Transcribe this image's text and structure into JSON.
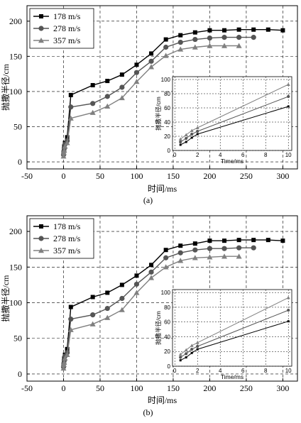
{
  "chart_data": [
    {
      "type": "line",
      "caption": "(a)",
      "xlabel": "时间/ms",
      "ylabel": "抛撒半径/cm",
      "xlim": [
        -50,
        320
      ],
      "ylim": [
        -10,
        222
      ],
      "xticks": [
        -50,
        0,
        50,
        100,
        150,
        200,
        250,
        300
      ],
      "yticks": [
        0,
        50,
        100,
        150,
        200
      ],
      "grid": true,
      "legend": "top-left",
      "series": [
        {
          "name": "178 m/s",
          "marker": "square",
          "color": "#000000",
          "x": [
            0,
            0.5,
            1,
            2,
            5,
            10,
            40,
            60,
            80,
            100,
            120,
            140,
            160,
            180,
            200,
            220,
            240,
            260,
            280,
            300
          ],
          "y": [
            12,
            18,
            22,
            27,
            35,
            95,
            109,
            115,
            124,
            138,
            154,
            174,
            180,
            184,
            187,
            187,
            188,
            188,
            188,
            187
          ]
        },
        {
          "name": "278 m/s",
          "marker": "circle",
          "color": "#555555",
          "x": [
            0,
            0.5,
            1,
            2,
            5,
            10,
            40,
            60,
            80,
            100,
            120,
            140,
            160,
            180,
            200,
            220,
            240,
            260
          ],
          "y": [
            10,
            15,
            19,
            25,
            30,
            78,
            83,
            93,
            106,
            127,
            143,
            163,
            170,
            174,
            176,
            177,
            177,
            177
          ]
        },
        {
          "name": "357 m/s",
          "marker": "triangle",
          "color": "#808080",
          "x": [
            0,
            0.5,
            1,
            2,
            5,
            10,
            40,
            60,
            80,
            100,
            120,
            140,
            160,
            180,
            200,
            220,
            240
          ],
          "y": [
            8,
            13,
            16,
            22,
            27,
            62,
            70,
            79,
            91,
            114,
            135,
            151,
            160,
            163,
            165,
            165,
            165
          ]
        }
      ],
      "inset": {
        "type": "line",
        "xlabel": "Time/ms",
        "ylabel": "抛撒半径/cm",
        "xlim": [
          -0.2,
          10.3
        ],
        "ylim": [
          0,
          104
        ],
        "xticks": [
          0,
          2,
          4,
          6,
          8,
          10
        ],
        "yticks": [
          0,
          20,
          40,
          60,
          80,
          100
        ],
        "series": [
          {
            "name": "178 m/s",
            "x": [
              0.5,
              1,
              1.5,
              2,
              10
            ],
            "y": [
              8,
              12,
              18,
              23,
              62
            ]
          },
          {
            "name": "278 m/s",
            "x": [
              0.5,
              1,
              1.5,
              2,
              10
            ],
            "y": [
              12,
              17,
              23,
              27,
              76
            ]
          },
          {
            "name": "357 m/s",
            "x": [
              0.5,
              1,
              1.5,
              2,
              10
            ],
            "y": [
              16,
              22,
              28,
              32,
              93
            ]
          }
        ]
      }
    },
    {
      "type": "line",
      "caption": "(b)",
      "xlabel": "时间/ms",
      "ylabel": "抛撒半径/cm",
      "xlim": [
        -50,
        320
      ],
      "ylim": [
        -10,
        222
      ],
      "xticks": [
        -50,
        0,
        50,
        100,
        150,
        200,
        250,
        300
      ],
      "yticks": [
        0,
        50,
        100,
        150,
        200
      ],
      "grid": true,
      "legend": "top-left",
      "series": [
        {
          "name": "178 m/s",
          "marker": "square",
          "color": "#000000",
          "x": [
            0,
            0.5,
            1,
            2,
            5,
            10,
            40,
            60,
            80,
            100,
            120,
            140,
            160,
            180,
            200,
            220,
            240,
            260,
            280,
            300
          ],
          "y": [
            12,
            18,
            22,
            27,
            35,
            94,
            108,
            114,
            125,
            138,
            153,
            174,
            180,
            183,
            187,
            187,
            188,
            188,
            188,
            187
          ]
        },
        {
          "name": "278 m/s",
          "marker": "circle",
          "color": "#555555",
          "x": [
            0,
            0.5,
            1,
            2,
            5,
            10,
            40,
            60,
            80,
            100,
            120,
            140,
            160,
            180,
            200,
            220,
            240,
            260
          ],
          "y": [
            10,
            15,
            19,
            25,
            30,
            77,
            83,
            92,
            106,
            126,
            143,
            163,
            170,
            174,
            176,
            176,
            177,
            177
          ]
        },
        {
          "name": "357 m/s",
          "marker": "triangle",
          "color": "#808080",
          "x": [
            0,
            0.5,
            1,
            2,
            5,
            10,
            40,
            60,
            80,
            100,
            120,
            140,
            160,
            180,
            200,
            220,
            240
          ],
          "y": [
            8,
            13,
            16,
            22,
            27,
            62,
            70,
            79,
            90,
            114,
            135,
            150,
            159,
            163,
            164,
            165,
            165
          ]
        }
      ],
      "inset": {
        "type": "line",
        "xlabel": "Time/ms",
        "ylabel": "抛撒半径/cm",
        "xlim": [
          -0.2,
          10.3
        ],
        "ylim": [
          0,
          104
        ],
        "xticks": [
          0,
          2,
          4,
          6,
          8,
          10
        ],
        "yticks": [
          0,
          20,
          40,
          60,
          80,
          100
        ],
        "series": [
          {
            "name": "178 m/s",
            "x": [
              0.5,
              1,
              1.5,
              2,
              10
            ],
            "y": [
              8,
              12,
              18,
              23,
              61
            ]
          },
          {
            "name": "278 m/s",
            "x": [
              0.5,
              1,
              1.5,
              2,
              10
            ],
            "y": [
              12,
              17,
              23,
              27,
              76
            ]
          },
          {
            "name": "357 m/s",
            "x": [
              0.5,
              1,
              1.5,
              2,
              10
            ],
            "y": [
              16,
              22,
              28,
              32,
              93
            ]
          }
        ]
      }
    }
  ]
}
